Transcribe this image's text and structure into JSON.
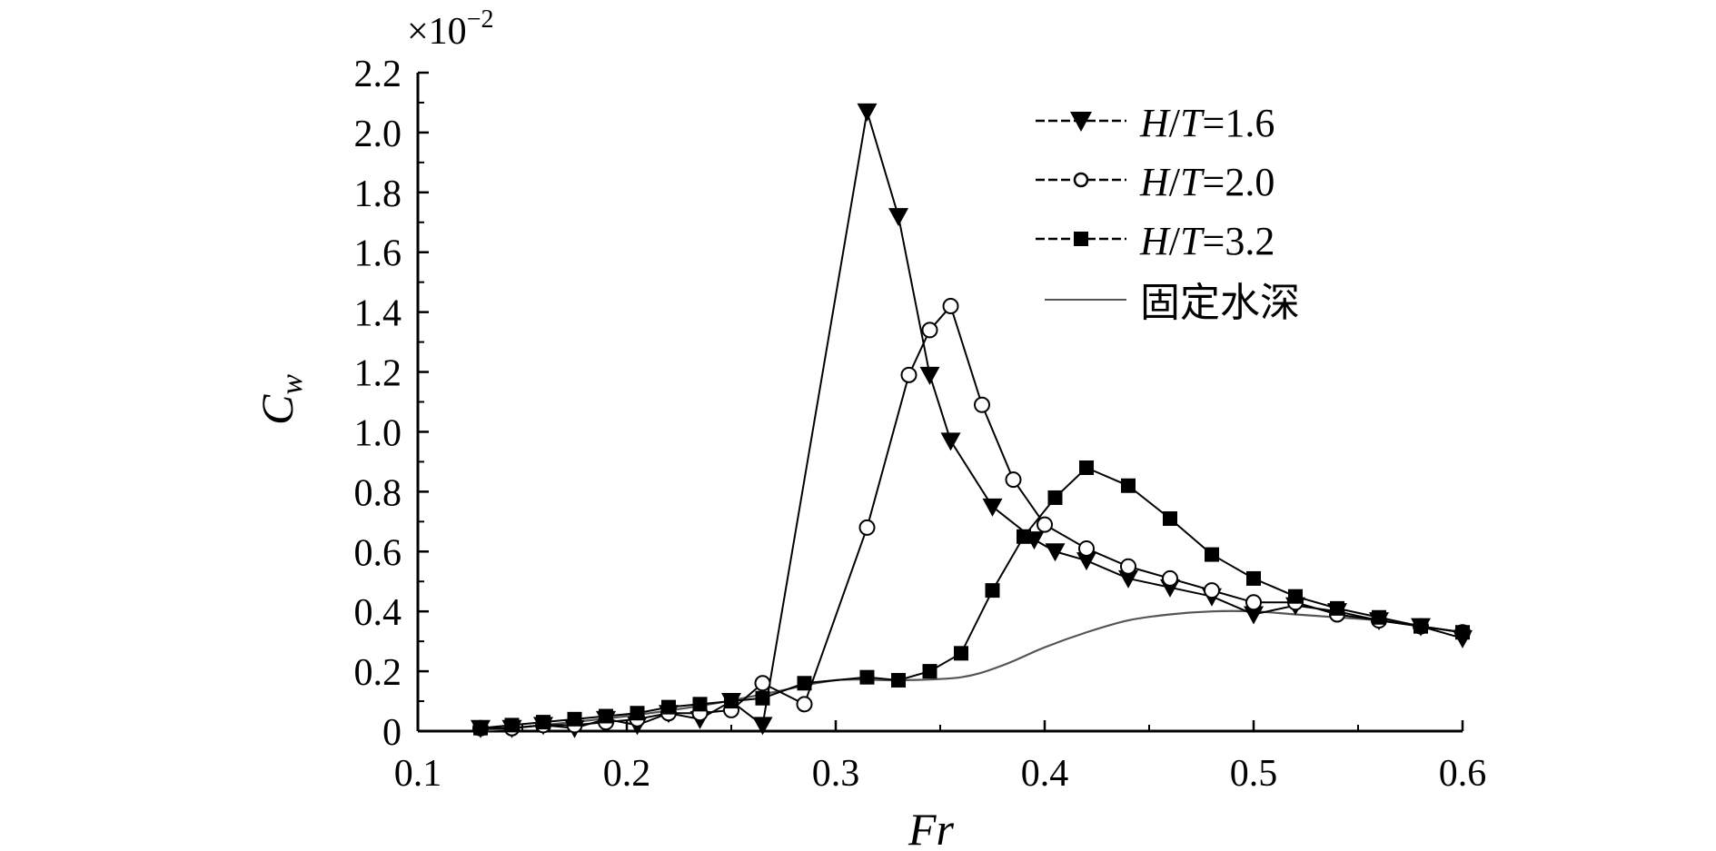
{
  "chart_data": {
    "type": "line",
    "multiplier_base": "×10",
    "multiplier_exp": "−2",
    "xlabel": "Fr",
    "ylabel_main": "C",
    "ylabel_sub": "w",
    "xlim": [
      0.1,
      0.6
    ],
    "ylim": [
      0,
      2.2
    ],
    "xticks": [
      0.1,
      0.2,
      0.3,
      0.4,
      0.5,
      0.6
    ],
    "xtick_labels": [
      "0.1",
      "0.2",
      "0.3",
      "0.4",
      "0.5",
      "0.6"
    ],
    "yticks": [
      0,
      0.2,
      0.4,
      0.6,
      0.8,
      1.0,
      1.2,
      1.4,
      1.6,
      1.8,
      2.0,
      2.2
    ],
    "ytick_labels": [
      "0",
      "0.2",
      "0.4",
      "0.6",
      "0.8",
      "1.0",
      "1.2",
      "1.4",
      "1.6",
      "1.8",
      "2.0",
      "2.2"
    ],
    "legend_placement": "top-right",
    "series": [
      {
        "name_italic_1": "H",
        "name_plain_1": "/",
        "name_italic_2": "T",
        "name_plain_2": "=1.6",
        "marker": "triangle-down",
        "x": [
          0.13,
          0.145,
          0.16,
          0.175,
          0.19,
          0.205,
          0.22,
          0.235,
          0.25,
          0.265,
          0.315,
          0.33,
          0.345,
          0.355,
          0.375,
          0.395,
          0.405,
          0.42,
          0.44,
          0.46,
          0.48,
          0.5,
          0.52,
          0.54,
          0.56,
          0.58,
          0.6
        ],
        "y": [
          0.01,
          0.01,
          0.02,
          0.01,
          0.04,
          0.02,
          0.06,
          0.04,
          0.1,
          0.02,
          2.07,
          1.72,
          1.19,
          0.97,
          0.75,
          0.64,
          0.6,
          0.57,
          0.51,
          0.48,
          0.45,
          0.39,
          0.42,
          0.4,
          0.37,
          0.35,
          0.31
        ]
      },
      {
        "name_italic_1": "H",
        "name_plain_1": "/",
        "name_italic_2": "T",
        "name_plain_2": "=2.0",
        "marker": "circle-open",
        "x": [
          0.13,
          0.145,
          0.16,
          0.175,
          0.19,
          0.205,
          0.22,
          0.235,
          0.25,
          0.265,
          0.285,
          0.315,
          0.335,
          0.345,
          0.355,
          0.37,
          0.385,
          0.4,
          0.42,
          0.44,
          0.46,
          0.48,
          0.5,
          0.52,
          0.54,
          0.56,
          0.58,
          0.6
        ],
        "y": [
          0.01,
          0.01,
          0.02,
          0.02,
          0.03,
          0.04,
          0.06,
          0.06,
          0.07,
          0.16,
          0.09,
          0.68,
          1.19,
          1.34,
          1.42,
          1.09,
          0.84,
          0.69,
          0.61,
          0.55,
          0.51,
          0.47,
          0.43,
          0.43,
          0.39,
          0.37,
          0.35,
          0.33
        ]
      },
      {
        "name_italic_1": "H",
        "name_plain_1": "/",
        "name_italic_2": "T",
        "name_plain_2": "=3.2",
        "marker": "square-filled",
        "x": [
          0.13,
          0.145,
          0.16,
          0.175,
          0.19,
          0.205,
          0.22,
          0.235,
          0.25,
          0.265,
          0.285,
          0.315,
          0.33,
          0.345,
          0.36,
          0.375,
          0.39,
          0.405,
          0.42,
          0.44,
          0.46,
          0.48,
          0.5,
          0.52,
          0.54,
          0.56,
          0.58,
          0.6
        ],
        "y": [
          0.01,
          0.02,
          0.03,
          0.04,
          0.05,
          0.06,
          0.08,
          0.09,
          0.1,
          0.11,
          0.16,
          0.18,
          0.17,
          0.2,
          0.26,
          0.47,
          0.65,
          0.78,
          0.88,
          0.82,
          0.71,
          0.59,
          0.51,
          0.45,
          0.41,
          0.38,
          0.35,
          0.33
        ]
      },
      {
        "name": "固定水深",
        "marker": "none",
        "x": [
          0.13,
          0.16,
          0.2,
          0.24,
          0.27,
          0.3,
          0.33,
          0.36,
          0.38,
          0.4,
          0.42,
          0.44,
          0.46,
          0.48,
          0.5,
          0.52,
          0.54,
          0.56,
          0.58,
          0.6
        ],
        "y": [
          0.0,
          0.02,
          0.05,
          0.09,
          0.13,
          0.17,
          0.17,
          0.18,
          0.22,
          0.28,
          0.33,
          0.37,
          0.39,
          0.4,
          0.4,
          0.39,
          0.38,
          0.37,
          0.35,
          0.33
        ]
      }
    ]
  }
}
